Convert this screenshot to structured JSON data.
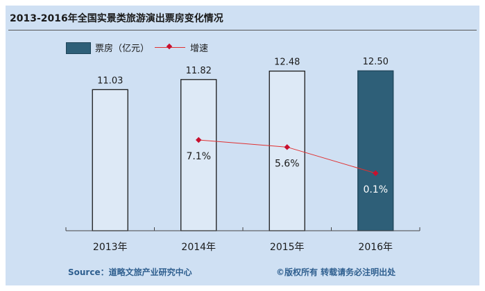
{
  "title": "2013-2016年全国实景类旅游演出票房变化情况",
  "legend": {
    "bar_label": "票房（亿元）",
    "line_label": "增速"
  },
  "footer": {
    "source": "Source：道略文旅产业研究中心",
    "copyright": "©版权所有  转载请务必注明出处"
  },
  "colors": {
    "background": "#cfe0f3",
    "bar_default": "#dde9f6",
    "bar_highlight": "#2e5f78",
    "line": "#e03030",
    "marker": "#c8102e"
  },
  "chart_data": {
    "type": "bar",
    "categories": [
      "2013年",
      "2014年",
      "2015年",
      "2016年"
    ],
    "series": [
      {
        "name": "票房（亿元）",
        "type": "bar",
        "values": [
          11.03,
          11.82,
          12.48,
          12.5
        ],
        "labels": [
          "11.03",
          "11.82",
          "12.48",
          "12.50"
        ],
        "highlight_index": 3
      },
      {
        "name": "增速",
        "type": "line",
        "values": [
          null,
          7.1,
          5.6,
          0.1
        ],
        "labels": [
          "",
          "7.1%",
          "5.6%",
          "0.1%"
        ]
      }
    ],
    "ylim": [
      0,
      13
    ],
    "growth_ylim": [
      -12,
      23
    ],
    "grid": false,
    "legend_position": "top-left"
  }
}
